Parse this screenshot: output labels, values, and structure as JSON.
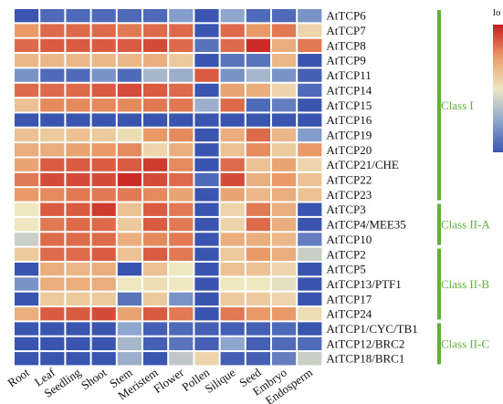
{
  "chart_data": {
    "type": "heatmap",
    "title": "",
    "xlabel": "",
    "ylabel": "",
    "columns": [
      "Root",
      "Leaf",
      "Seedling",
      "Shoot",
      "Stem",
      "Meristem",
      "Flower",
      "Pollen",
      "Silique",
      "Seed",
      "Embryo",
      "Endosperm"
    ],
    "rows": [
      "AtTCP6",
      "AtTCP7",
      "AtTCP8",
      "AtTCP9",
      "AtTCP11",
      "AtTCP14",
      "AtTCP15",
      "AtTCP16",
      "AtTCP19",
      "AtTCP20",
      "AtTCP21/CHE",
      "AtTCP22",
      "AtTCP23",
      "AtTCP3",
      "AtTCP4/MEE35",
      "AtTCP10",
      "AtTCP2",
      "AtTCP5",
      "AtTCP13/PTF1",
      "AtTCP17",
      "AtTCP24",
      "AtTCP1/CYC/TB1",
      "AtTCP12/BRC2",
      "AtTCP18/BRC1"
    ],
    "values": [
      [
        -1.6,
        -1.4,
        -1.4,
        -1.4,
        -1.4,
        -1.4,
        -0.9,
        -1.6,
        -0.8,
        -1.4,
        -1.4,
        -1.0
      ],
      [
        0.8,
        1.1,
        1.1,
        1.1,
        1.0,
        1.1,
        1.1,
        -1.6,
        1.1,
        0.8,
        1.0,
        0.2
      ],
      [
        1.1,
        1.2,
        1.2,
        1.2,
        1.2,
        1.3,
        1.1,
        -1.3,
        1.1,
        1.5,
        0.6,
        1.0
      ],
      [
        0.5,
        0.5,
        0.5,
        0.5,
        0.5,
        0.6,
        0.3,
        -1.6,
        -1.3,
        -1.3,
        0.5,
        -1.6
      ],
      [
        -1.0,
        -1.4,
        -1.4,
        -1.0,
        -1.4,
        -0.6,
        -0.7,
        1.2,
        -1.0,
        -0.6,
        -1.0,
        -1.5
      ],
      [
        1.1,
        1.1,
        1.1,
        1.2,
        1.3,
        1.2,
        1.1,
        -1.6,
        0.7,
        0.6,
        0.2,
        -1.4
      ],
      [
        0.4,
        0.9,
        0.9,
        0.9,
        0.9,
        1.0,
        1.0,
        -0.7,
        1.1,
        -1.4,
        -1.2,
        -1.6
      ],
      [
        -1.6,
        -1.6,
        -1.6,
        -1.6,
        -1.6,
        -1.6,
        -1.6,
        -1.6,
        -1.6,
        -1.6,
        -1.6,
        -1.6
      ],
      [
        0.4,
        0.3,
        0.4,
        0.3,
        0.1,
        0.8,
        0.9,
        -1.6,
        0.6,
        1.1,
        0.5,
        -0.9
      ],
      [
        0.6,
        0.6,
        0.7,
        0.8,
        0.9,
        0.2,
        0.6,
        -1.6,
        0.4,
        0.9,
        0.3,
        0.8
      ],
      [
        0.7,
        1.2,
        1.2,
        1.2,
        1.2,
        1.4,
        0.9,
        -1.6,
        1.1,
        0.4,
        0.7,
        0.2
      ],
      [
        1.0,
        1.3,
        1.3,
        1.3,
        1.5,
        1.3,
        1.1,
        -1.4,
        1.3,
        0.6,
        0.8,
        0.4
      ],
      [
        0.8,
        0.9,
        1.0,
        1.0,
        1.0,
        0.9,
        0.7,
        -1.6,
        0.7,
        0.5,
        0.6,
        0.4
      ],
      [
        0.0,
        1.2,
        1.2,
        1.4,
        0.4,
        1.2,
        1.0,
        -1.6,
        0.2,
        1.0,
        0.6,
        -1.6
      ],
      [
        0.0,
        1.0,
        1.1,
        1.1,
        0.3,
        1.2,
        1.0,
        -1.6,
        0.2,
        1.1,
        0.6,
        -1.6
      ],
      [
        -0.3,
        1.1,
        1.1,
        1.1,
        0.6,
        0.9,
        1.0,
        -1.6,
        0.6,
        0.6,
        0.5,
        -1.2
      ],
      [
        0.3,
        1.1,
        1.1,
        1.2,
        0.4,
        1.2,
        1.0,
        -1.6,
        0.3,
        0.8,
        0.6,
        -0.3
      ],
      [
        -1.6,
        0.6,
        0.5,
        0.6,
        -1.6,
        0.4,
        0.0,
        -1.6,
        0.4,
        0.4,
        0.2,
        -1.6
      ],
      [
        -1.0,
        0.6,
        0.6,
        0.6,
        0.0,
        0.1,
        0.0,
        -1.6,
        0.0,
        0.0,
        -0.1,
        -1.6
      ],
      [
        -1.6,
        0.3,
        0.3,
        0.3,
        -1.3,
        0.3,
        -1.0,
        -1.6,
        0.3,
        0.3,
        0.2,
        -1.6
      ],
      [
        0.6,
        1.2,
        1.2,
        1.3,
        0.7,
        1.2,
        1.0,
        -1.6,
        1.0,
        0.8,
        0.8,
        0.1
      ],
      [
        -1.6,
        -1.6,
        -1.6,
        -1.6,
        -0.8,
        -1.5,
        -1.4,
        -1.5,
        -1.5,
        -1.5,
        -1.4,
        -1.6
      ],
      [
        -1.6,
        -1.6,
        -1.6,
        -1.6,
        -0.6,
        -1.5,
        -1.3,
        -1.5,
        -0.8,
        -1.5,
        -1.4,
        -1.4
      ],
      [
        -1.6,
        -1.6,
        -1.6,
        -1.6,
        -0.7,
        -1.6,
        -0.4,
        0.2,
        -1.5,
        -1.5,
        -1.2,
        -0.3
      ]
    ],
    "value_range": [
      -1.6,
      1.6
    ],
    "colormap": [
      "#3a55b0",
      "#8fa7cf",
      "#eee7c0",
      "#e99a66",
      "#c81b1e"
    ],
    "gap_color": "#ffffff",
    "groups": [
      {
        "name": "Class I",
        "rows": 13
      },
      {
        "name": "Class II-A",
        "rows": 3
      },
      {
        "name": "Class II-B",
        "rows": 5
      },
      {
        "name": "Class II-C",
        "rows": 3
      }
    ],
    "group_color": "#5db233",
    "legend": {
      "title": "lo",
      "placement": "top-right"
    }
  }
}
